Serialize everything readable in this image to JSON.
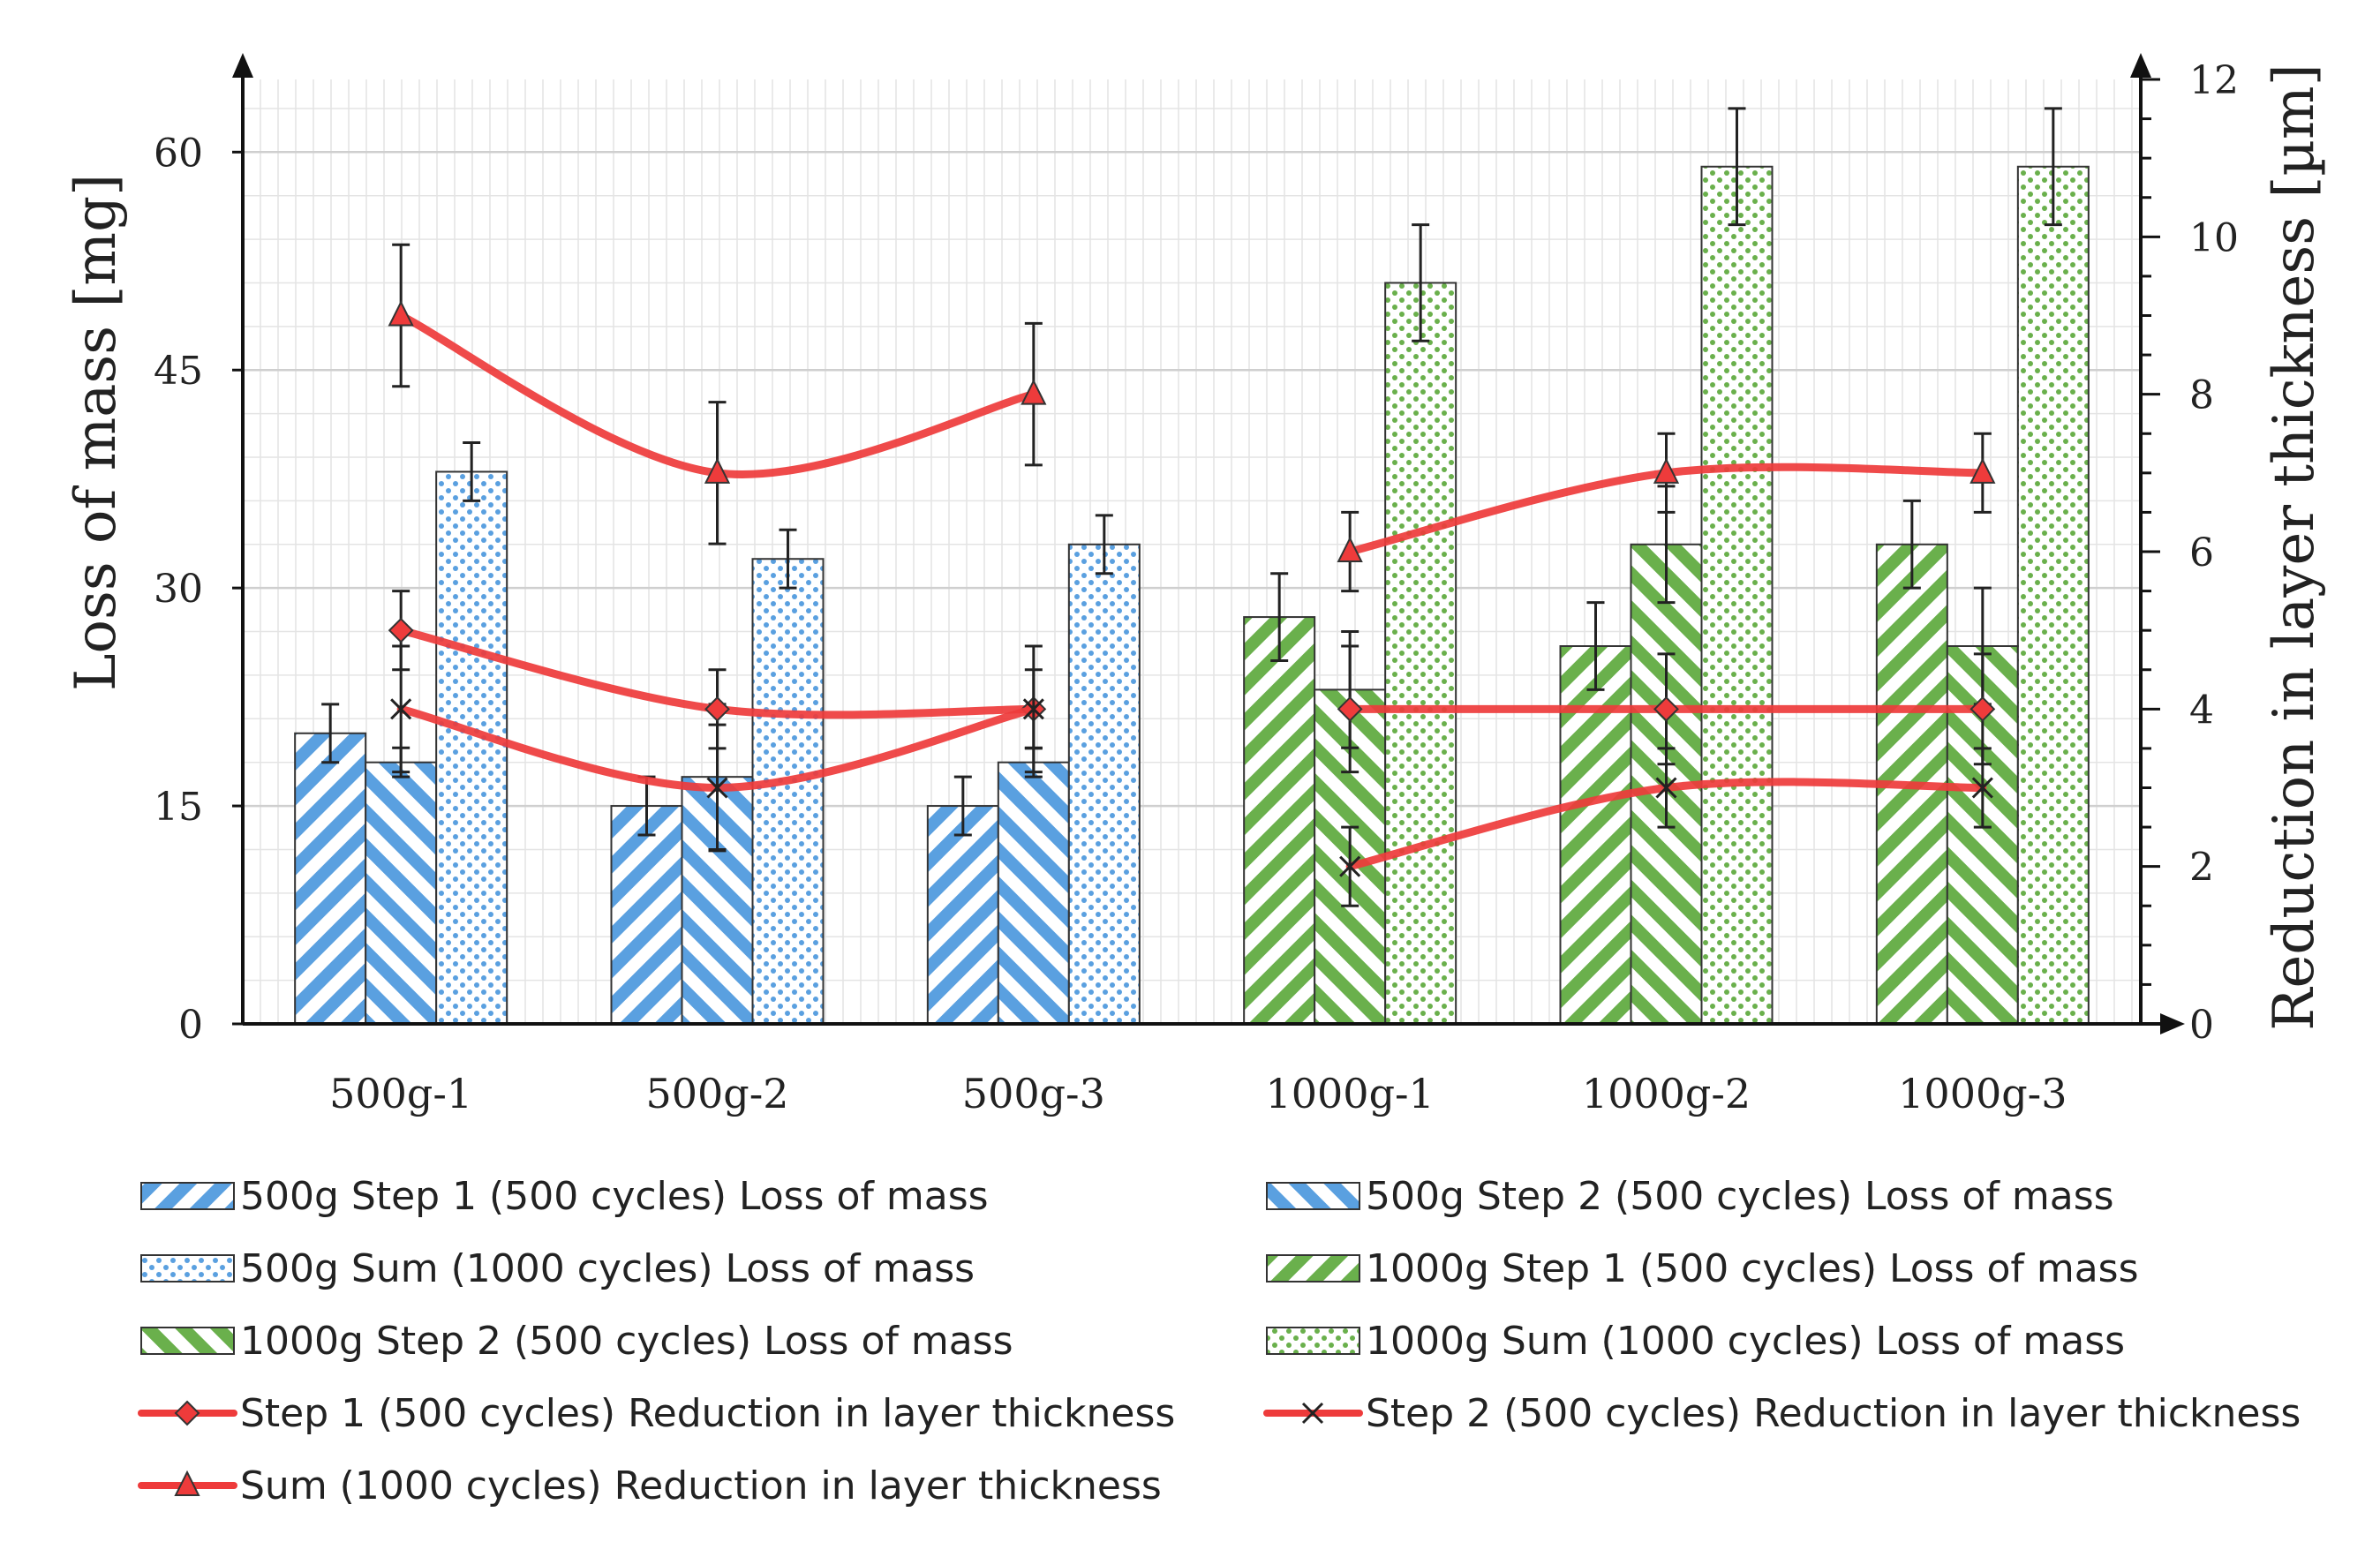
{
  "chart_data": {
    "type": "bar",
    "categories": [
      "500g-1",
      "500g-2",
      "500g-3",
      "1000g-1",
      "1000g-2",
      "1000g-3"
    ],
    "ylabel_left": "Loss of mass [mg]",
    "ylabel_right": "Reduction in layer thickness [µm]",
    "ylim_left": [
      0,
      65
    ],
    "yticks_left": [
      0,
      15,
      30,
      45,
      60
    ],
    "ylim_right": [
      0,
      12
    ],
    "yticks_right": [
      0,
      2,
      4,
      6,
      8,
      10,
      12
    ],
    "grid": true,
    "legend_position": "bottom",
    "bar_series": [
      {
        "name": "500g Step 1 (500 cycles) Loss of mass",
        "group": "500g",
        "slot": 0,
        "pattern": "hatch-down",
        "color": "#5aa0e0",
        "values": [
          20,
          15,
          15,
          null,
          null,
          null
        ],
        "errors": [
          2,
          2,
          2,
          null,
          null,
          null
        ]
      },
      {
        "name": "500g Step 2 (500 cycles) Loss of mass",
        "group": "500g",
        "slot": 1,
        "pattern": "hatch-up",
        "color": "#5aa0e0",
        "values": [
          18,
          17,
          18,
          null,
          null,
          null
        ],
        "errors": [
          1,
          5,
          1,
          null,
          null,
          null
        ]
      },
      {
        "name": "500g Sum (1000 cycles) Loss of mass",
        "group": "500g",
        "slot": 2,
        "pattern": "dots",
        "color": "#5aa0e0",
        "values": [
          38,
          32,
          33,
          null,
          null,
          null
        ],
        "errors": [
          2,
          2,
          2,
          null,
          null,
          null
        ]
      },
      {
        "name": "1000g Step 1 (500 cycles) Loss of mass",
        "group": "1000g",
        "slot": 0,
        "pattern": "hatch-down",
        "color": "#6ab04c",
        "values": [
          null,
          null,
          null,
          28,
          26,
          33
        ],
        "errors": [
          null,
          null,
          null,
          3,
          3,
          3
        ]
      },
      {
        "name": "1000g Step 2 (500 cycles) Loss of mass",
        "group": "1000g",
        "slot": 1,
        "pattern": "hatch-up",
        "color": "#6ab04c",
        "values": [
          null,
          null,
          null,
          23,
          33,
          26
        ],
        "errors": [
          null,
          null,
          null,
          4,
          4,
          4
        ]
      },
      {
        "name": "1000g Sum (1000 cycles) Loss of mass",
        "group": "1000g",
        "slot": 2,
        "pattern": "dots",
        "color": "#6ab04c",
        "values": [
          null,
          null,
          null,
          51,
          59,
          59
        ],
        "errors": [
          null,
          null,
          null,
          4,
          4,
          4
        ]
      }
    ],
    "line_series": [
      {
        "name": "Step 1 (500 cycles) Reduction in layer thickness",
        "marker": "diamond",
        "color": "#ee3b3b",
        "points": [
          {
            "cat": 0,
            "value": 5,
            "error": 0.5
          },
          {
            "cat": 1,
            "value": 4,
            "error": 0.5
          },
          {
            "cat": 2,
            "value": 4,
            "error": 0.5
          },
          {
            "cat": 3,
            "value": 4,
            "error": 0.8
          },
          {
            "cat": 4,
            "value": 4,
            "error": 0.7
          },
          {
            "cat": 5,
            "value": 4,
            "error": 0.7
          }
        ]
      },
      {
        "name": "Step 2 (500 cycles) Reduction in layer thickness",
        "marker": "x",
        "color": "#ee3b3b",
        "points": [
          {
            "cat": 0,
            "value": 4,
            "error": 0.8
          },
          {
            "cat": 1,
            "value": 3,
            "error": 0.8
          },
          {
            "cat": 2,
            "value": 4,
            "error": 0.8
          },
          {
            "cat": 3,
            "value": 2,
            "error": 0.5
          },
          {
            "cat": 4,
            "value": 3,
            "error": 0.5
          },
          {
            "cat": 5,
            "value": 3,
            "error": 0.5
          }
        ]
      },
      {
        "name": "Sum (1000 cycles) Reduction in layer thickness",
        "marker": "triangle",
        "color": "#ee3b3b",
        "points": [
          {
            "cat": 0,
            "value": 9,
            "error": 0.9
          },
          {
            "cat": 1,
            "value": 7,
            "error": 0.9
          },
          {
            "cat": 2,
            "value": 8,
            "error": 0.9
          },
          {
            "cat": 3,
            "value": 6,
            "error": 0.5
          },
          {
            "cat": 4,
            "value": 7,
            "error": 0.5
          },
          {
            "cat": 5,
            "value": 7,
            "error": 0.5
          }
        ]
      }
    ],
    "legend": [
      {
        "label": "500g Step 1 (500 cycles) Loss of mass",
        "kind": "bar",
        "pattern": "hatch-down",
        "color": "#5aa0e0"
      },
      {
        "label": "500g Step 2 (500 cycles) Loss of mass",
        "kind": "bar",
        "pattern": "hatch-up",
        "color": "#5aa0e0"
      },
      {
        "label": "500g Sum (1000 cycles) Loss of mass",
        "kind": "bar",
        "pattern": "dots",
        "color": "#5aa0e0"
      },
      {
        "label": "1000g Step 1 (500 cycles) Loss of mass",
        "kind": "bar",
        "pattern": "hatch-down",
        "color": "#6ab04c"
      },
      {
        "label": "1000g Step 2 (500 cycles) Loss of mass",
        "kind": "bar",
        "pattern": "hatch-up",
        "color": "#6ab04c"
      },
      {
        "label": "1000g Sum (1000 cycles) Loss of mass",
        "kind": "bar",
        "pattern": "dots",
        "color": "#6ab04c"
      },
      {
        "label": "Step 1 (500 cycles) Reduction in layer thickness",
        "kind": "line",
        "marker": "diamond",
        "color": "#ee3b3b"
      },
      {
        "label": "Step 2 (500 cycles) Reduction in layer thickness",
        "kind": "line",
        "marker": "x",
        "color": "#ee3b3b"
      },
      {
        "label": "Sum (1000 cycles) Reduction in layer thickness",
        "kind": "line",
        "marker": "triangle",
        "color": "#ee3b3b"
      }
    ]
  }
}
